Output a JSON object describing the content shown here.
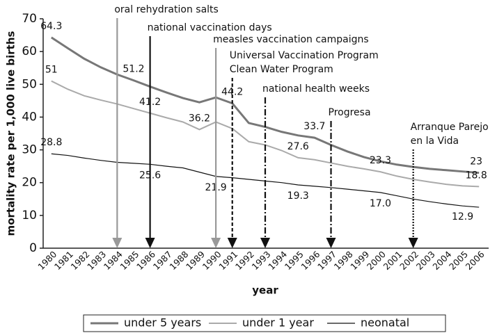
{
  "chart_data": {
    "type": "line",
    "ylabel": "mortality rate per 1,000 live births",
    "xlabel": "year",
    "categories": [
      "1980",
      "1981",
      "1982",
      "1983",
      "1984",
      "1985",
      "1986",
      "1987",
      "1988",
      "1989",
      "1990",
      "1991",
      "1992",
      "1993",
      "1994",
      "1995",
      "1996",
      "1997",
      "1998",
      "1999",
      "2000",
      "2001",
      "2002",
      "2003",
      "2004",
      "2005",
      "2006"
    ],
    "ylim": [
      0,
      70
    ],
    "yticks": [
      0,
      10,
      20,
      30,
      40,
      50,
      60,
      70
    ],
    "series": [
      {
        "name": "under 5 years",
        "color": "#777777",
        "values": [
          64.3,
          61.0,
          57.8,
          55.2,
          53.0,
          51.2,
          49.3,
          47.5,
          45.8,
          44.5,
          46.0,
          44.2,
          38.2,
          37.0,
          35.5,
          34.4,
          33.7,
          31.5,
          29.5,
          27.8,
          26.5,
          25.5,
          24.8,
          24.2,
          23.8,
          23.4,
          23
        ],
        "value_labels": [
          "64.3",
          null,
          null,
          null,
          null,
          "51.2",
          null,
          null,
          null,
          null,
          null,
          "44.2",
          null,
          null,
          null,
          null,
          "33.7",
          null,
          null,
          null,
          null,
          null,
          null,
          null,
          null,
          null,
          "23"
        ]
      },
      {
        "name": "under 1 year",
        "color": "#aaaaaa",
        "values": [
          51,
          48.5,
          46.5,
          45.2,
          44.0,
          42.6,
          41.2,
          39.8,
          38.5,
          36.2,
          38.5,
          36.5,
          32.5,
          31.5,
          29.8,
          27.6,
          27.0,
          26.0,
          25.0,
          24.2,
          23.3,
          22.0,
          21.0,
          20.2,
          19.5,
          19.0,
          18.8
        ],
        "value_labels": [
          "51",
          null,
          null,
          null,
          null,
          null,
          "41.2",
          null,
          null,
          "36.2",
          null,
          null,
          null,
          null,
          null,
          "27.6",
          null,
          null,
          null,
          null,
          "23.3",
          null,
          null,
          null,
          null,
          null,
          "18.8"
        ]
      },
      {
        "name": "neonatal",
        "color": "#111111",
        "values": [
          28.8,
          28.3,
          27.5,
          26.8,
          26.2,
          25.9,
          25.6,
          25.0,
          24.5,
          23.2,
          21.9,
          21.5,
          21.0,
          20.5,
          20.0,
          19.3,
          18.9,
          18.5,
          18.0,
          17.5,
          17.0,
          16.0,
          15.0,
          14.2,
          13.5,
          12.9,
          12.5
        ],
        "value_labels": [
          "28.8",
          null,
          null,
          null,
          null,
          null,
          "25.6",
          null,
          null,
          null,
          "21.9",
          null,
          null,
          null,
          null,
          "19.3",
          null,
          null,
          null,
          null,
          "17.0",
          null,
          null,
          null,
          null,
          "12.9",
          null
        ]
      }
    ],
    "annotations": [
      {
        "text": [
          "oral rehydration salts"
        ],
        "x": "1984",
        "color": "#999999",
        "style": "solid"
      },
      {
        "text": [
          "national vaccination days"
        ],
        "x": "1986",
        "color": "#111111",
        "style": "solid"
      },
      {
        "text": [
          "measles vaccination campaigns"
        ],
        "x": "1990",
        "color": "#999999",
        "style": "solid"
      },
      {
        "text": [
          "Universal Vaccination Program",
          "Clean Water Program"
        ],
        "x": "1991",
        "color": "#111111",
        "style": "dashed"
      },
      {
        "text": [
          "national health weeks"
        ],
        "x": "1993",
        "color": "#111111",
        "style": "dashdot"
      },
      {
        "text": [
          "Progresa"
        ],
        "x": "1997",
        "color": "#111111",
        "style": "dashdot"
      },
      {
        "text": [
          "Arranque Parejo",
          "en la Vida"
        ],
        "x": "2002",
        "color": "#111111",
        "style": "dotted"
      }
    ],
    "legend": "bottom"
  }
}
